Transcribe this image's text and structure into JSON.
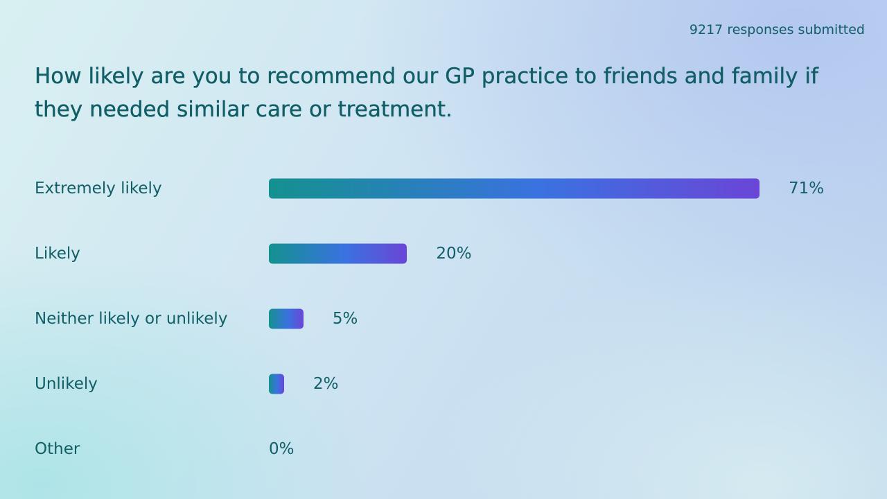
{
  "header": {
    "responses": "9217 responses submitted"
  },
  "question": "How likely are you to recommend our GP practice to friends and family if they needed similar care or treatment.",
  "colors": {
    "text": "#115e67",
    "bar_start": "#14918f",
    "bar_mid": "#3a72e0",
    "bar_end": "#6a46d6"
  },
  "chart_data": {
    "type": "bar",
    "orientation": "horizontal",
    "categories": [
      "Extremely likely",
      "Likely",
      "Neither likely or unlikely",
      "Unlikely",
      "Other"
    ],
    "values": [
      71,
      20,
      5,
      2,
      0
    ],
    "value_labels": [
      "71%",
      "20%",
      "5%",
      "2%",
      "0%"
    ],
    "unit": "%",
    "xlim": [
      0,
      71
    ]
  }
}
